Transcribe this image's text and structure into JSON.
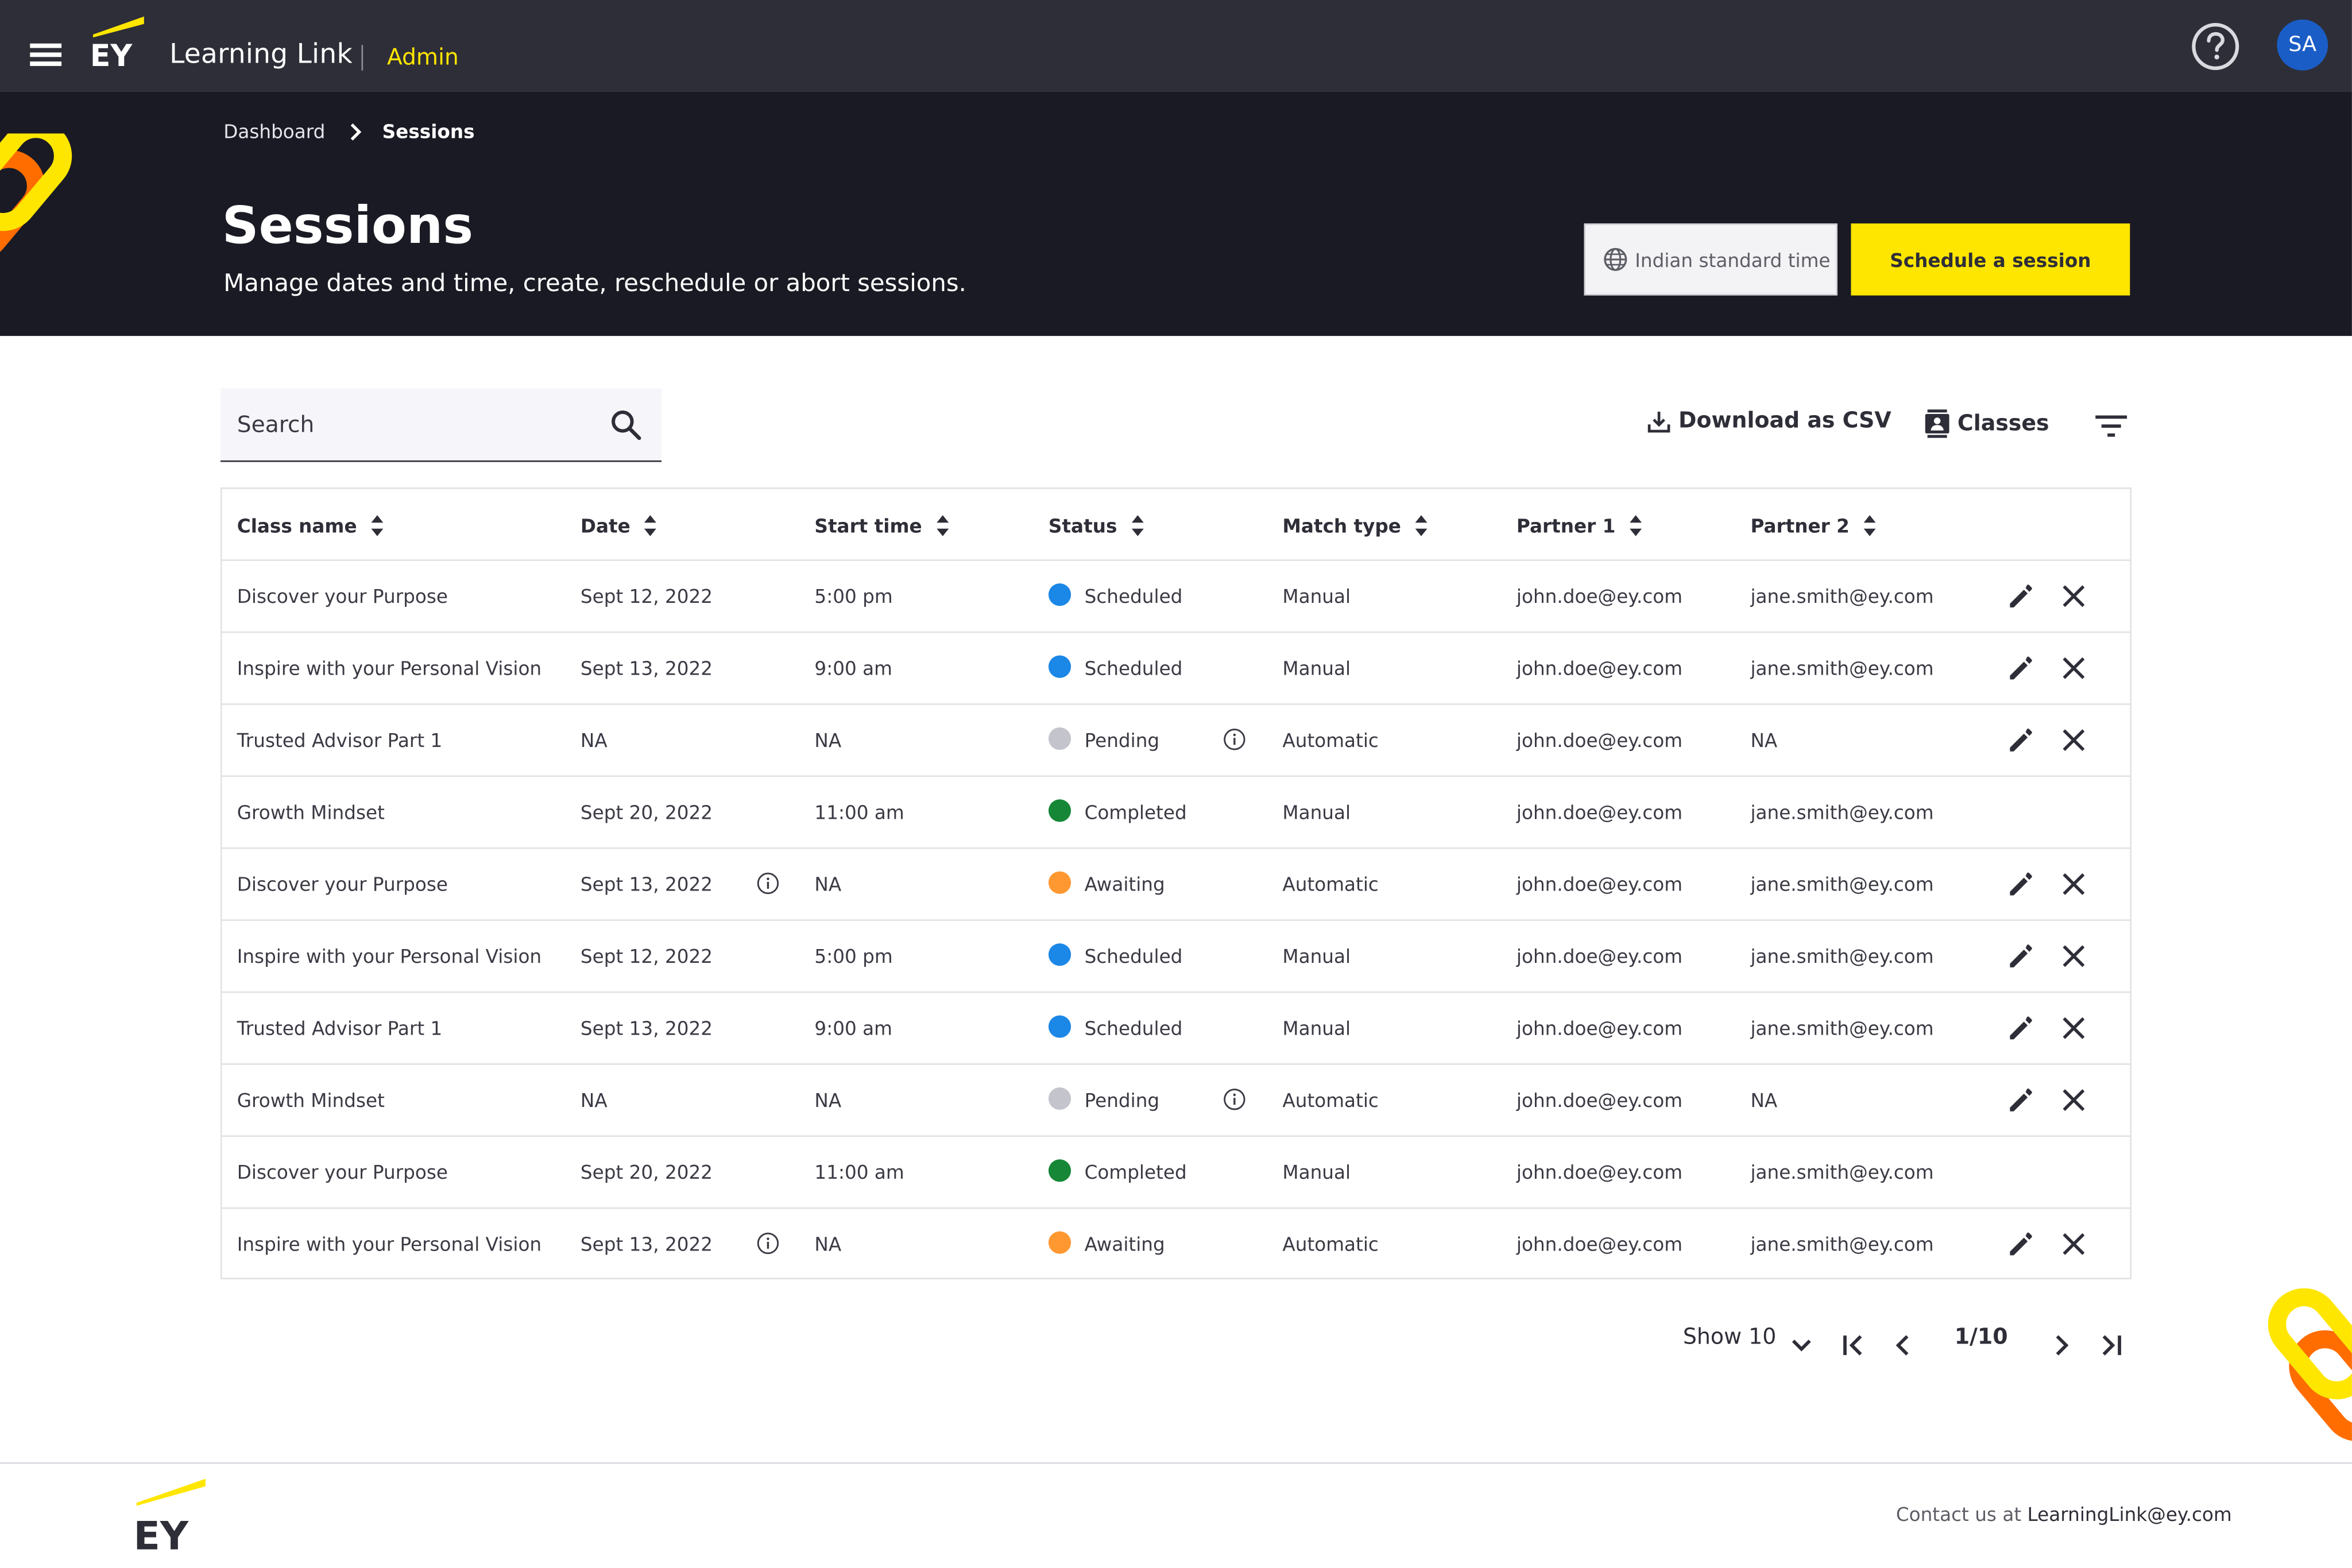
{
  "header": {
    "logo_text": "EY",
    "app_title": "Learning Link",
    "role_label": "Admin",
    "avatar_initials": "SA"
  },
  "breadcrumb": {
    "items": [
      "Dashboard",
      "Sessions"
    ]
  },
  "hero": {
    "title": "Sessions",
    "subtitle": "Manage dates and time, create, reschedule or abort sessions.",
    "timezone_label": "Indian standard time",
    "schedule_label": "Schedule a session"
  },
  "toolbar": {
    "search_placeholder": "Search",
    "download_label": "Download as CSV",
    "classes_label": "Classes"
  },
  "table": {
    "columns": [
      "Class name",
      "Date",
      "Start time",
      "Status",
      "Match type",
      "Partner 1",
      "Partner 2"
    ],
    "rows": [
      {
        "class_name": "Discover your Purpose",
        "date": "Sept 12, 2022",
        "start_time": "5:00 pm",
        "status": "Scheduled",
        "match_type": "Manual",
        "partner1": "john.doe@ey.com",
        "partner2": "jane.smith@ey.com"
      },
      {
        "class_name": "Inspire with your Personal Vision",
        "date": "Sept 13, 2022",
        "start_time": "9:00 am",
        "status": "Scheduled",
        "match_type": "Manual",
        "partner1": "john.doe@ey.com",
        "partner2": "jane.smith@ey.com"
      },
      {
        "class_name": "Trusted Advisor Part 1",
        "date": "NA",
        "start_time": "NA",
        "status": "Pending",
        "match_type": "Automatic",
        "partner1": "john.doe@ey.com",
        "partner2": "NA"
      },
      {
        "class_name": "Growth Mindset",
        "date": "Sept 20, 2022",
        "start_time": "11:00 am",
        "status": "Completed",
        "match_type": "Manual",
        "partner1": "john.doe@ey.com",
        "partner2": "jane.smith@ey.com"
      },
      {
        "class_name": "Discover your Purpose",
        "date": "Sept 13, 2022",
        "start_time": "NA",
        "status": "Awaiting",
        "match_type": "Automatic",
        "partner1": "john.doe@ey.com",
        "partner2": "jane.smith@ey.com"
      },
      {
        "class_name": "Inspire with your Personal Vision",
        "date": "Sept 12, 2022",
        "start_time": "5:00 pm",
        "status": "Scheduled",
        "match_type": "Manual",
        "partner1": "john.doe@ey.com",
        "partner2": "jane.smith@ey.com"
      },
      {
        "class_name": "Trusted Advisor Part 1",
        "date": "Sept 13, 2022",
        "start_time": "9:00 am",
        "status": "Scheduled",
        "match_type": "Manual",
        "partner1": "john.doe@ey.com",
        "partner2": "jane.smith@ey.com"
      },
      {
        "class_name": "Growth Mindset",
        "date": "NA",
        "start_time": "NA",
        "status": "Pending",
        "match_type": "Automatic",
        "partner1": "john.doe@ey.com",
        "partner2": "NA"
      },
      {
        "class_name": "Discover your Purpose",
        "date": "Sept 20, 2022",
        "start_time": "11:00 am",
        "status": "Completed",
        "match_type": "Manual",
        "partner1": "john.doe@ey.com",
        "partner2": "jane.smith@ey.com"
      },
      {
        "class_name": "Inspire with your Personal Vision",
        "date": "Sept 13, 2022",
        "start_time": "NA",
        "status": "Awaiting",
        "match_type": "Automatic",
        "partner1": "john.doe@ey.com",
        "partner2": "jane.smith@ey.com"
      }
    ]
  },
  "status_colors": {
    "Scheduled": "#1b87e6",
    "Pending": "#c4c4cd",
    "Completed": "#168736",
    "Awaiting": "#ff9831"
  },
  "pagination": {
    "show_label": "Show 10",
    "page_label": "1/10"
  },
  "footer": {
    "logo_text": "EY",
    "contact_prefix": "Contact us at",
    "contact_email": "LearningLink@ey.com"
  },
  "colors": {
    "brand_yellow": "#ffe600",
    "dark_bar": "#2e2e38",
    "hero_bg": "#1a1a24",
    "accent_orange": "#ff6d00"
  }
}
